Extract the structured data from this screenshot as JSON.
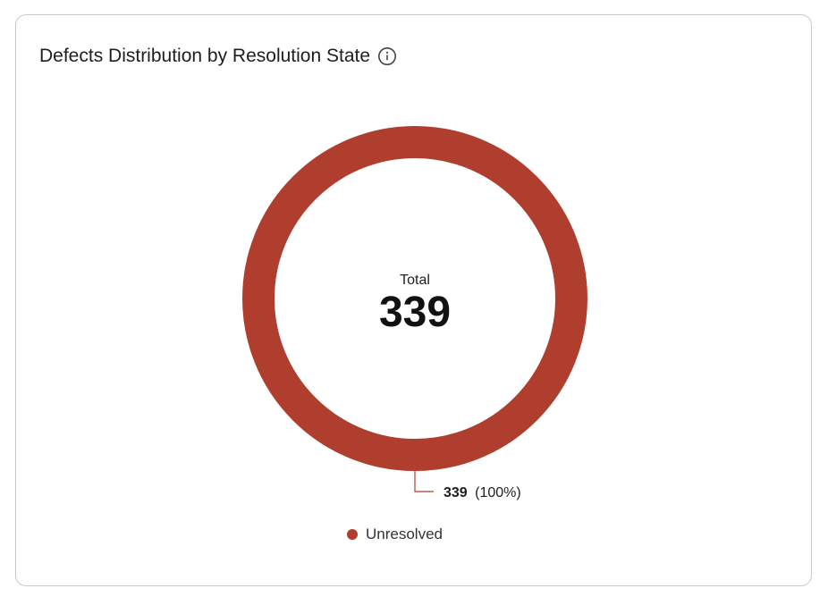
{
  "card": {
    "title": "Defects Distribution by Resolution State",
    "info_icon": "info-circle-icon"
  },
  "colors": {
    "unresolved": "#b03e2f",
    "card_border": "#c9c9c9",
    "text_primary": "#1e1e1e"
  },
  "chart_data": {
    "type": "pie",
    "style": "donut",
    "title": "Defects Distribution by Resolution State",
    "center_label": "Total",
    "center_value": "339",
    "series": [
      {
        "name": "Unresolved",
        "value": 339,
        "value_label": "339",
        "percent_label": "(100%)",
        "color": "#b03e2f"
      }
    ],
    "legend": {
      "position": "bottom",
      "items": [
        "Unresolved"
      ]
    }
  }
}
